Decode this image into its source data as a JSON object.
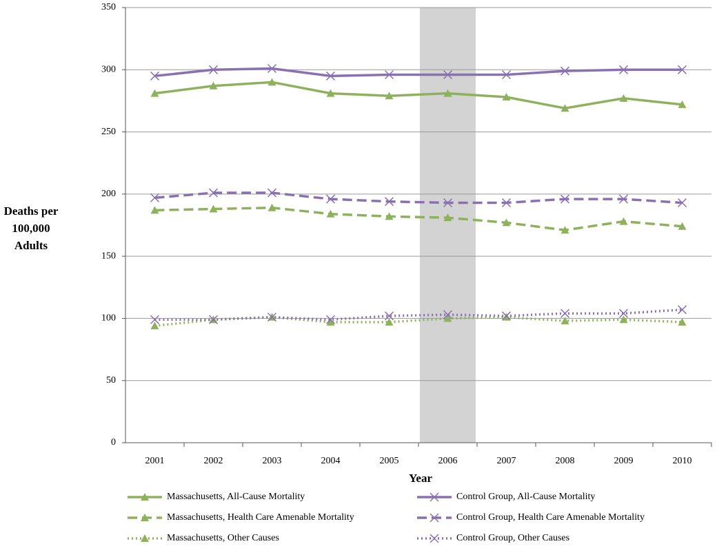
{
  "chart_data": {
    "type": "line",
    "xlabel": "Year",
    "ylabel": [
      "Deaths per",
      "100,000",
      "Adults"
    ],
    "categories": [
      "2001",
      "2002",
      "2003",
      "2004",
      "2005",
      "2006",
      "2007",
      "2008",
      "2009",
      "2010"
    ],
    "shaded_category": "2006",
    "ylim": [
      0,
      350
    ],
    "yticks": [
      0,
      50,
      100,
      150,
      200,
      250,
      300,
      350
    ],
    "grid": true,
    "series": [
      {
        "name": "Massachusetts, All-Cause Mortality",
        "color": "#8db25b",
        "dash": "solid",
        "marker": "triangle",
        "values": [
          281,
          287,
          290,
          281,
          279,
          281,
          278,
          269,
          277,
          272
        ]
      },
      {
        "name": "Control Group, All-Cause Mortality",
        "color": "#8a70b2",
        "dash": "solid",
        "marker": "x",
        "values": [
          295,
          300,
          301,
          295,
          296,
          296,
          296,
          299,
          300,
          300
        ]
      },
      {
        "name": "Massachusetts, Health Care Amenable Mortality",
        "color": "#8db25b",
        "dash": "dashed",
        "marker": "triangle",
        "values": [
          187,
          188,
          189,
          184,
          182,
          181,
          177,
          171,
          178,
          174
        ]
      },
      {
        "name": "Control Group, Health Care Amenable Mortality",
        "color": "#8a70b2",
        "dash": "dashed",
        "marker": "x",
        "values": [
          197,
          201,
          201,
          196,
          194,
          193,
          193,
          196,
          196,
          193
        ]
      },
      {
        "name": "Massachusetts, Other Causes",
        "color": "#8db25b",
        "dash": "dotted",
        "marker": "triangle",
        "values": [
          94,
          99,
          101,
          97,
          97,
          100,
          101,
          98,
          99,
          97
        ]
      },
      {
        "name": "Control Group, Other Causes",
        "color": "#8a70b2",
        "dash": "dotted",
        "marker": "x",
        "values": [
          99,
          99,
          101,
          99,
          102,
          103,
          102,
          104,
          104,
          107
        ]
      }
    ]
  }
}
